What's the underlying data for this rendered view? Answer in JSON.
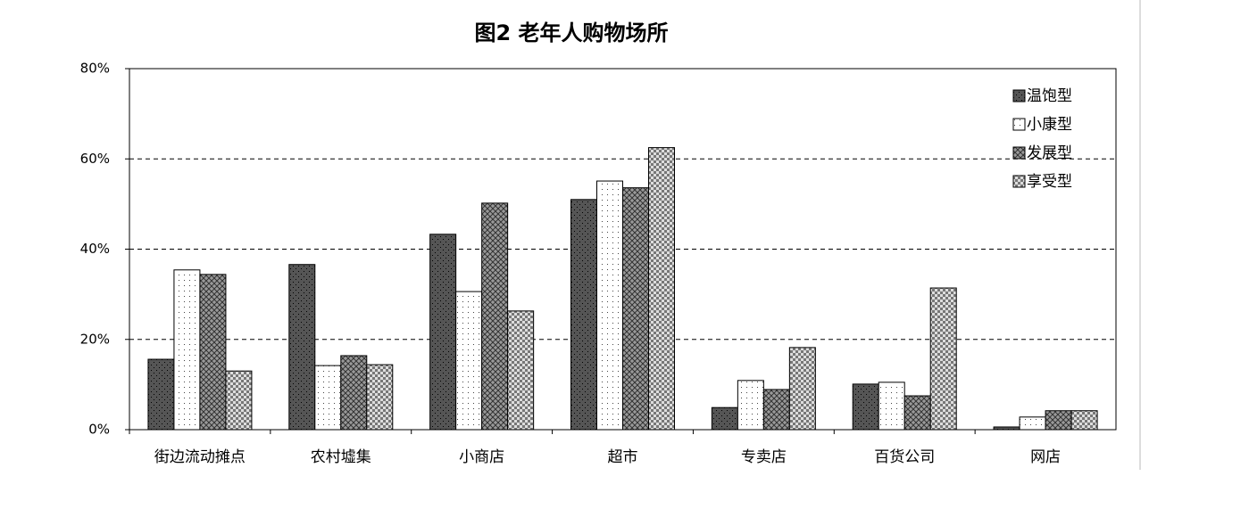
{
  "chart_data": {
    "type": "bar",
    "title": "图2 老年人购物场所",
    "categories": [
      "街边流动摊点",
      "农村墟集",
      "小商店",
      "超市",
      "专卖店",
      "百货公司",
      "网店"
    ],
    "series": [
      {
        "name": "温饱型",
        "color": "#555555",
        "values": [
          15.6,
          36.6,
          43.3,
          51.0,
          4.9,
          10.1,
          0.6
        ]
      },
      {
        "name": "小康型",
        "color": "#ffffff",
        "values": [
          35.4,
          14.2,
          30.6,
          55.1,
          10.9,
          10.5,
          2.8
        ]
      },
      {
        "name": "发展型",
        "color": "#999999",
        "values": [
          34.4,
          16.4,
          50.2,
          53.6,
          8.9,
          7.5,
          4.2
        ]
      },
      {
        "name": "享受型",
        "color": "#dddddd",
        "values": [
          13.0,
          14.4,
          26.3,
          62.5,
          18.2,
          31.4,
          4.2
        ]
      }
    ],
    "ylim": [
      0,
      80
    ],
    "yticks": [
      {
        "value": 0,
        "label": "0%"
      },
      {
        "value": 20,
        "label": "20%"
      },
      {
        "value": 40,
        "label": "40%"
      },
      {
        "value": 60,
        "label": "60%"
      },
      {
        "value": 80,
        "label": "80%"
      }
    ],
    "grid": true,
    "legend": "top-right"
  }
}
